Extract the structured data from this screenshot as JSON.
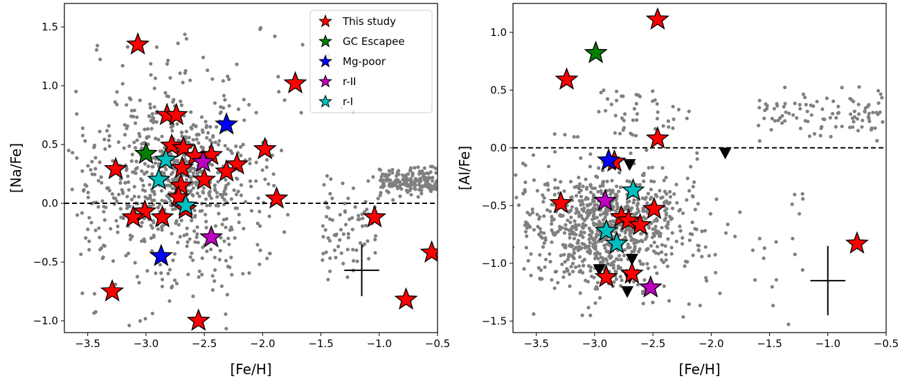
{
  "chart_data": [
    {
      "type": "scatter",
      "xlabel": "[Fe/H]",
      "ylabel": "[Na/Fe]",
      "xlim": [
        -3.7,
        -0.5
      ],
      "ylim": [
        -1.1,
        1.7
      ],
      "xticks": [
        "−3.5",
        "−3.0",
        "−2.5",
        "−2.0",
        "−1.5",
        "−1.0",
        "−0.5"
      ],
      "xtick_values": [
        -3.5,
        -3.0,
        -2.5,
        -2.0,
        -1.5,
        -1.0,
        -0.5
      ],
      "yticks": [
        "−1.0",
        "−0.5",
        "0.0",
        "0.5",
        "1.0",
        "1.5"
      ],
      "ytick_values": [
        -1.0,
        -0.5,
        0.0,
        0.5,
        1.0,
        1.5
      ],
      "reference_line": 0.0,
      "error_bar": {
        "x": -1.15,
        "y": -0.57,
        "xerr": 0.15,
        "yerr": 0.22
      },
      "legend": {
        "placement": "top-right",
        "entries": [
          {
            "label": "This study",
            "color": "#ff0000"
          },
          {
            "label": "GC Escapee",
            "color": "#008000"
          },
          {
            "label": "Mg-poor",
            "color": "#0000ff"
          },
          {
            "label": "r-II",
            "color": "#bf00bf"
          },
          {
            "label": "r-I",
            "color": "#00bfbf"
          }
        ]
      },
      "series": [
        {
          "name": "This study",
          "color": "#ff0000",
          "points": [
            [
              -3.07,
              1.35
            ],
            [
              -1.72,
              1.02
            ],
            [
              -2.82,
              0.75
            ],
            [
              -2.74,
              0.75
            ],
            [
              -1.98,
              0.46
            ],
            [
              -2.78,
              0.49
            ],
            [
              -2.68,
              0.47
            ],
            [
              -2.44,
              0.41
            ],
            [
              -2.58,
              0.4
            ],
            [
              -2.22,
              0.33
            ],
            [
              -2.31,
              0.27
            ],
            [
              -3.26,
              0.29
            ],
            [
              -2.69,
              0.3
            ],
            [
              -2.7,
              0.15
            ],
            [
              -2.5,
              0.2
            ],
            [
              -2.72,
              0.05
            ],
            [
              -1.88,
              0.04
            ],
            [
              -3.01,
              -0.07
            ],
            [
              -3.11,
              -0.12
            ],
            [
              -2.86,
              -0.12
            ],
            [
              -2.66,
              -0.05
            ],
            [
              -1.04,
              -0.12
            ],
            [
              -3.29,
              -0.75
            ],
            [
              -0.77,
              -0.82
            ],
            [
              -0.55,
              -0.42
            ],
            [
              -2.55,
              -1.0
            ]
          ]
        },
        {
          "name": "GC Escapee",
          "color": "#008000",
          "points": [
            [
              -3.0,
              0.42
            ]
          ]
        },
        {
          "name": "Mg-poor",
          "color": "#0000ff",
          "points": [
            [
              -2.31,
              0.67
            ],
            [
              -2.87,
              -0.45
            ]
          ]
        },
        {
          "name": "r-II",
          "color": "#bf00bf",
          "points": [
            [
              -2.51,
              0.35
            ],
            [
              -2.44,
              -0.29
            ]
          ]
        },
        {
          "name": "r-I",
          "color": "#00bfbf",
          "points": [
            [
              -2.83,
              0.37
            ],
            [
              -2.89,
              0.2
            ],
            [
              -2.66,
              -0.02
            ]
          ]
        }
      ]
    },
    {
      "type": "scatter",
      "xlabel": "[Fe/H]",
      "ylabel": "[Al/Fe]",
      "xlim": [
        -3.7,
        -0.5
      ],
      "ylim": [
        -1.6,
        1.25
      ],
      "xticks": [
        "−3.5",
        "−3.0",
        "−2.5",
        "−2.0",
        "−1.5",
        "−1.0",
        "−0.5"
      ],
      "xtick_values": [
        -3.5,
        -3.0,
        -2.5,
        -2.0,
        -1.5,
        -1.0,
        -0.5
      ],
      "yticks": [
        "−1.5",
        "−1.0",
        "−0.5",
        "0.0",
        "0.5",
        "1.0"
      ],
      "ytick_values": [
        -1.5,
        -1.0,
        -0.5,
        0.0,
        0.5,
        1.0
      ],
      "reference_line": 0.0,
      "error_bar": {
        "x": -1.0,
        "y": -1.15,
        "xerr": 0.15,
        "yerr": 0.3
      },
      "upper_limits": [
        [
          -1.88,
          -0.04
        ],
        [
          -2.7,
          -0.14
        ],
        [
          -2.96,
          -1.05
        ],
        [
          -2.68,
          -0.96
        ],
        [
          -2.72,
          -1.24
        ],
        [
          -2.7,
          -1.12
        ],
        [
          -2.82,
          -0.13
        ]
      ],
      "series": [
        {
          "name": "This study",
          "color": "#ff0000",
          "points": [
            [
              -2.46,
              1.11
            ],
            [
              -3.24,
              0.59
            ],
            [
              -2.46,
              0.08
            ],
            [
              -3.29,
              -0.48
            ],
            [
              -2.49,
              -0.53
            ],
            [
              -2.77,
              -0.6
            ],
            [
              -2.71,
              -0.63
            ],
            [
              -2.61,
              -0.67
            ],
            [
              -2.68,
              -1.09
            ],
            [
              -2.9,
              -1.12
            ],
            [
              -0.75,
              -0.83
            ],
            [
              -2.83,
              -0.12
            ]
          ]
        },
        {
          "name": "GC Escapee",
          "color": "#008000",
          "points": [
            [
              -2.99,
              0.82
            ]
          ]
        },
        {
          "name": "Mg-poor",
          "color": "#0000ff",
          "points": [
            [
              -2.88,
              -0.11
            ]
          ]
        },
        {
          "name": "r-II",
          "color": "#bf00bf",
          "points": [
            [
              -2.91,
              -0.46
            ],
            [
              -2.52,
              -1.21
            ]
          ]
        },
        {
          "name": "r-I",
          "color": "#00bfbf",
          "points": [
            [
              -2.67,
              -0.37
            ],
            [
              -2.9,
              -0.72
            ],
            [
              -2.81,
              -0.83
            ]
          ]
        }
      ]
    }
  ]
}
